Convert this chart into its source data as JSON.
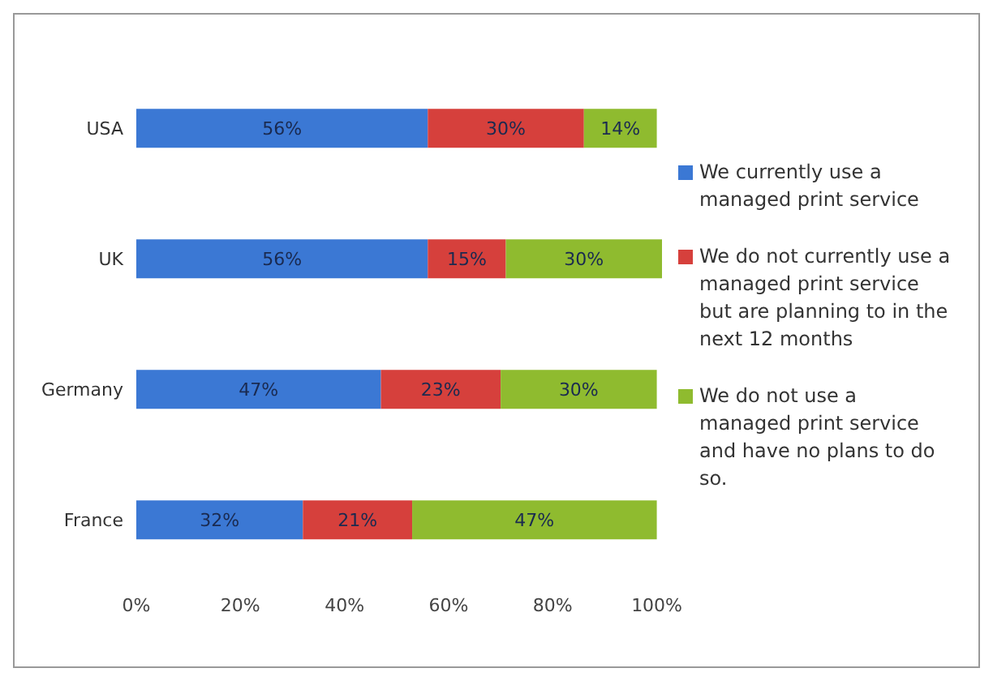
{
  "chart_data": {
    "type": "bar",
    "orientation": "horizontal",
    "stacked": true,
    "categories": [
      "USA",
      "UK",
      "Germany",
      "France"
    ],
    "series": [
      {
        "name": "We currently use a managed print service",
        "color": "#3b78d4",
        "values": [
          56,
          56,
          47,
          32
        ],
        "value_labels": [
          "56%",
          "56%",
          "47%",
          "32%"
        ]
      },
      {
        "name": "We do not currently use a managed print service but are planning to in the next 12 months",
        "color": "#d6403c",
        "values": [
          30,
          15,
          23,
          21
        ],
        "value_labels": [
          "30%",
          "15%",
          "23%",
          "21%"
        ]
      },
      {
        "name": "We do not use a managed print service and have no plans to do so.",
        "color": "#8fbb2f",
        "values": [
          14,
          30,
          30,
          47
        ],
        "value_labels": [
          "14%",
          "30%",
          "30%",
          "47%"
        ]
      }
    ],
    "xlim": [
      0,
      101
    ],
    "xticks": [
      {
        "value": 0,
        "label": "0%"
      },
      {
        "value": 20,
        "label": "20%"
      },
      {
        "value": 40,
        "label": "40%"
      },
      {
        "value": 60,
        "label": "60%"
      },
      {
        "value": 80,
        "label": "80%"
      },
      {
        "value": 100,
        "label": "100%"
      }
    ],
    "grid": false,
    "legend": "right"
  }
}
